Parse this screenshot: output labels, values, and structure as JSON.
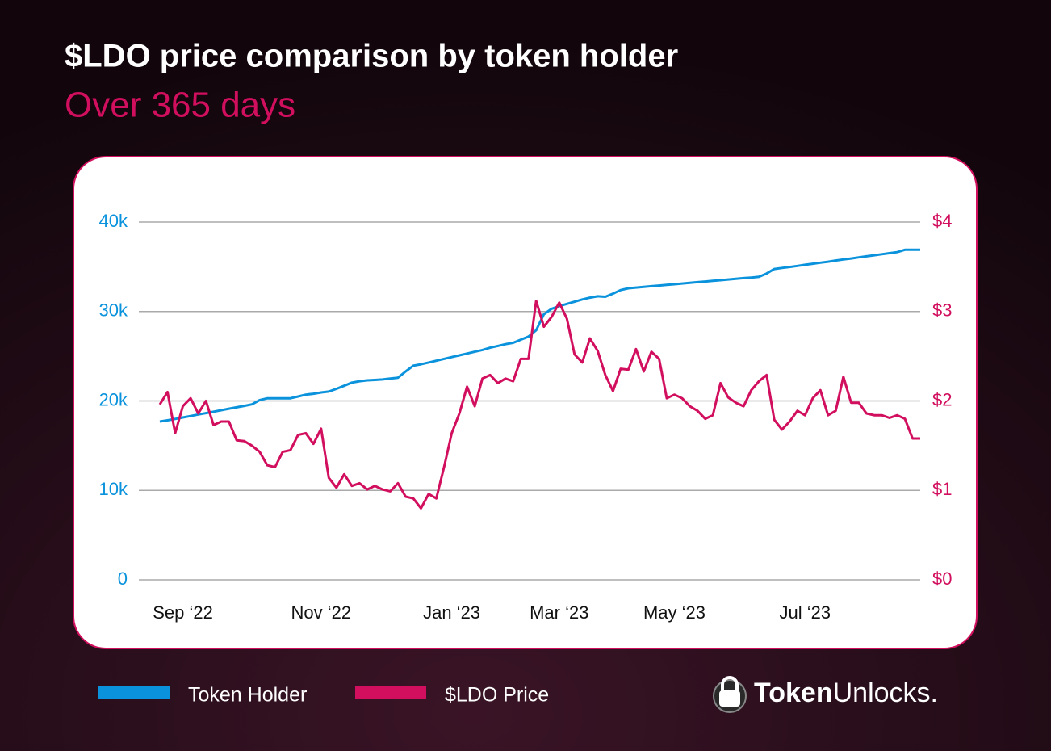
{
  "chart_data": {
    "type": "line",
    "title": "$LDO price comparison by token holder",
    "subtitle": "Over 365 days",
    "categories": [
      null,
      null,
      null,
      "Sep ‘22",
      null,
      null,
      null,
      null,
      null,
      null,
      null,
      null,
      null,
      null,
      null,
      null,
      null,
      null,
      null,
      null,
      null,
      "Nov ‘22",
      null,
      null,
      null,
      null,
      null,
      null,
      null,
      null,
      null,
      null,
      null,
      null,
      null,
      null,
      null,
      null,
      "Jan ‘23",
      null,
      null,
      null,
      null,
      null,
      null,
      null,
      null,
      null,
      null,
      null,
      null,
      null,
      "Mar ‘23",
      null,
      null,
      null,
      null,
      null,
      null,
      null,
      null,
      null,
      null,
      null,
      null,
      null,
      null,
      "May ‘23",
      null,
      null,
      null,
      null,
      null,
      null,
      null,
      null,
      null,
      null,
      null,
      null,
      null,
      null,
      null,
      null,
      "Jul ‘23",
      null,
      null,
      null,
      null,
      null,
      null,
      null,
      null,
      null,
      null,
      null,
      null,
      null,
      null,
      null
    ],
    "series": [
      {
        "name": "Token Holder",
        "color": "#0a93dc",
        "axis": "y",
        "values": [
          17700,
          17830,
          17990,
          18150,
          18310,
          18480,
          18640,
          18800,
          18960,
          19130,
          19290,
          19450,
          19620,
          20100,
          20300,
          20300,
          20300,
          20300,
          20500,
          20700,
          20800,
          20950,
          21050,
          21350,
          21700,
          22050,
          22200,
          22300,
          22350,
          22400,
          22500,
          22600,
          23300,
          23950,
          24100,
          24300,
          24500,
          24700,
          24900,
          25100,
          25300,
          25500,
          25700,
          25950,
          26150,
          26350,
          26500,
          26850,
          27200,
          27900,
          29700,
          30300,
          30600,
          30850,
          31100,
          31350,
          31550,
          31700,
          31650,
          32000,
          32400,
          32600,
          32680,
          32750,
          32830,
          32900,
          32980,
          33050,
          33130,
          33200,
          33280,
          33350,
          33430,
          33500,
          33580,
          33650,
          33730,
          33800,
          33880,
          34250,
          34750,
          34870,
          34980,
          35100,
          35220,
          35340,
          35460,
          35570,
          35700,
          35820,
          35930,
          36050,
          36170,
          36290,
          36410,
          36520,
          36640,
          36900,
          36900,
          36900
        ]
      },
      {
        "name": "$LDO Price",
        "color": "#d20f5e",
        "axis": "y2",
        "values": [
          1.96,
          2.1,
          1.64,
          1.94,
          2.03,
          1.86,
          2.0,
          1.73,
          1.77,
          1.77,
          1.56,
          1.55,
          1.5,
          1.43,
          1.28,
          1.26,
          1.43,
          1.45,
          1.62,
          1.64,
          1.52,
          1.69,
          1.14,
          1.03,
          1.18,
          1.05,
          1.08,
          1.01,
          1.05,
          1.01,
          0.99,
          1.08,
          0.93,
          0.91,
          0.8,
          0.96,
          0.91,
          1.26,
          1.64,
          1.86,
          2.16,
          1.94,
          2.25,
          2.29,
          2.2,
          2.25,
          2.22,
          2.47,
          2.47,
          3.12,
          2.83,
          2.94,
          3.1,
          2.92,
          2.52,
          2.43,
          2.7,
          2.56,
          2.29,
          2.11,
          2.36,
          2.35,
          2.58,
          2.33,
          2.55,
          2.47,
          2.03,
          2.07,
          2.03,
          1.94,
          1.89,
          1.8,
          1.84,
          2.2,
          2.04,
          1.98,
          1.94,
          2.12,
          2.22,
          2.29,
          1.79,
          1.68,
          1.77,
          1.89,
          1.84,
          2.03,
          2.12,
          1.84,
          1.89,
          2.27,
          1.98,
          1.98,
          1.86,
          1.84,
          1.84,
          1.81,
          1.84,
          1.8,
          1.58,
          1.58
        ]
      }
    ],
    "ylim": [
      0,
      40000
    ],
    "yticks": [
      0,
      {
        "value": 10000,
        "label": "10k"
      },
      {
        "value": 20000,
        "label": "20k"
      },
      {
        "value": 30000,
        "label": "30k"
      },
      {
        "value": 40000,
        "label": "40k"
      }
    ],
    "y2lim": [
      0,
      4
    ],
    "y2ticks": [
      {
        "value": 0,
        "label": "$0"
      },
      {
        "value": 1,
        "label": "$1"
      },
      {
        "value": 2,
        "label": "$2"
      },
      {
        "value": 3,
        "label": "$3"
      },
      {
        "value": 4,
        "label": "$4"
      }
    ],
    "grid": true,
    "legend": "bottom-left",
    "brand_bold": "Token",
    "brand_light": "Unlocks."
  }
}
